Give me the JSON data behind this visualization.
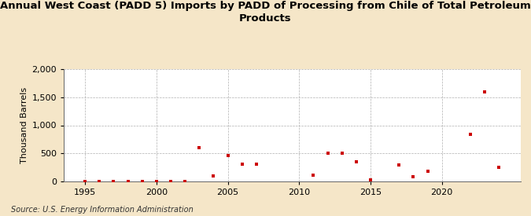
{
  "title": "Annual West Coast (PADD 5) Imports by PADD of Processing from Chile of Total Petroleum\nProducts",
  "ylabel": "Thousand Barrels",
  "source": "Source: U.S. Energy Information Administration",
  "background_color": "#f5e6c8",
  "plot_bg_color": "#ffffff",
  "marker_color": "#cc0000",
  "years": [
    1995,
    1996,
    1997,
    1998,
    1999,
    2000,
    2001,
    2002,
    2003,
    2004,
    2005,
    2006,
    2007,
    2011,
    2012,
    2013,
    2014,
    2015,
    2017,
    2018,
    2019,
    2022,
    2023,
    2024
  ],
  "values": [
    3,
    3,
    3,
    3,
    3,
    3,
    3,
    3,
    600,
    100,
    460,
    310,
    310,
    110,
    500,
    510,
    350,
    30,
    300,
    80,
    175,
    840,
    1590,
    245
  ],
  "ylim": [
    0,
    2000
  ],
  "xlim": [
    1993.5,
    2025.5
  ],
  "yticks": [
    0,
    500,
    1000,
    1500,
    2000
  ],
  "xticks": [
    1995,
    2000,
    2005,
    2010,
    2015,
    2020
  ],
  "title_fontsize": 9.5,
  "axis_fontsize": 8,
  "tick_fontsize": 8,
  "source_fontsize": 7
}
